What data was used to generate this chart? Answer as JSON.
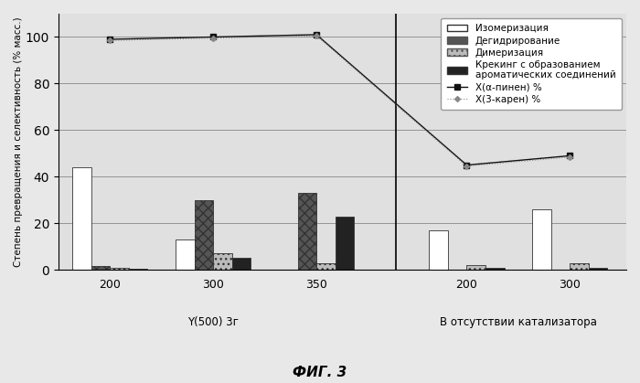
{
  "group_labels": [
    "200",
    "300",
    "350",
    "200",
    "300"
  ],
  "section_label_1": "Y(500) 3г",
  "section_label_2": "В отсутствии катализатора",
  "bars_isomerization": [
    44,
    13,
    0,
    17,
    26
  ],
  "bars_dehydrogenation": [
    1.5,
    30,
    33,
    0,
    0
  ],
  "bars_dimerization": [
    1,
    7,
    3,
    2,
    3
  ],
  "bars_cracking": [
    0.5,
    5,
    23,
    1,
    1
  ],
  "line_alpha": [
    99,
    100,
    101,
    45,
    49
  ],
  "line_karen": [
    98.5,
    99.5,
    100.5,
    44.5,
    48.5
  ],
  "x_positions": [
    1.0,
    2.1,
    3.2,
    4.8,
    5.9
  ],
  "bar_width": 0.2,
  "separator_x": 4.05,
  "xlim": [
    0.45,
    6.5
  ],
  "ylim": [
    0,
    110
  ],
  "yticks": [
    0,
    20,
    40,
    60,
    80,
    100
  ],
  "color_isomerization": "#ffffff",
  "color_dehydrogenation": "#555555",
  "color_dimerization": "#bbbbbb",
  "color_cracking": "#222222",
  "hatch_isomerization": "",
  "hatch_dehydrogenation": "xxx",
  "hatch_dimerization": "...",
  "hatch_cracking": "",
  "ylabel": "Степень превращения и селективность (% масс.)",
  "fig_title": "ФИГ. 3",
  "legend_isomerization": "Изомеризация",
  "legend_dehydrogenation": "Дегидрирование",
  "legend_dimerization": "Димеризация",
  "legend_cracking": "Крекинг с образованием\nароматических соединений",
  "legend_alpha": "X(α-пинен) %",
  "legend_karen": "X(3-карен) %",
  "bg_color": "#e8e8e8",
  "plot_bg": "#e0e0e0"
}
